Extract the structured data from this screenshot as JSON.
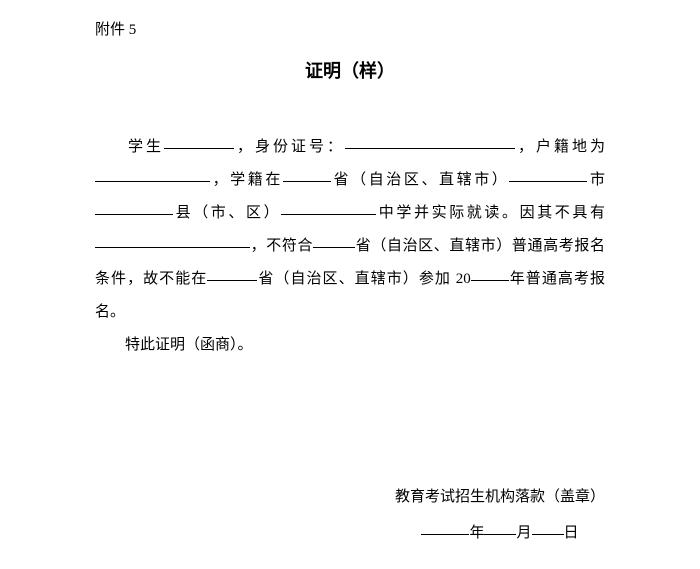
{
  "attachment_label": "附件 5",
  "title": "证明（样）",
  "body": {
    "student_label": "学生",
    "id_label": "，身份证号：",
    "huji_prefix": "，户籍地为",
    "xueji_prefix": "，学籍在",
    "province_suffix1": "省（自治区、直辖市）",
    "city_suffix": "市",
    "county_suffix": "县（市、区）",
    "school_suffix": "中学并实际就读。因其不具有",
    "not_conform_prefix": "，不符合",
    "province_suffix2": "省（自治区、直辖市）普通高考报名条件，故不能在",
    "province_suffix3": "省（自治区、直辖市）参加 20",
    "year_suffix": "年普通高考报名。",
    "closing": "特此证明（函商）。"
  },
  "signature": {
    "org": "教育考试招生机构落款（盖章）",
    "year": "年",
    "month": "月",
    "day": "日"
  },
  "blanks": {
    "w_student": "70px",
    "w_id": "170px",
    "w_huji": "115px",
    "w_province1": "48px",
    "w_city": "78px",
    "w_county": "78px",
    "w_school": "95px",
    "w_reason": "155px",
    "w_province2": "42px",
    "w_province3": "50px",
    "w_year2": "38px",
    "w_sig_year": "48px",
    "w_sig_month": "32px",
    "w_sig_day": "32px"
  },
  "colors": {
    "text": "#000000",
    "background": "#ffffff"
  },
  "fonts": {
    "body_size": 15,
    "title_size": 18,
    "line_height": 2.2
  }
}
